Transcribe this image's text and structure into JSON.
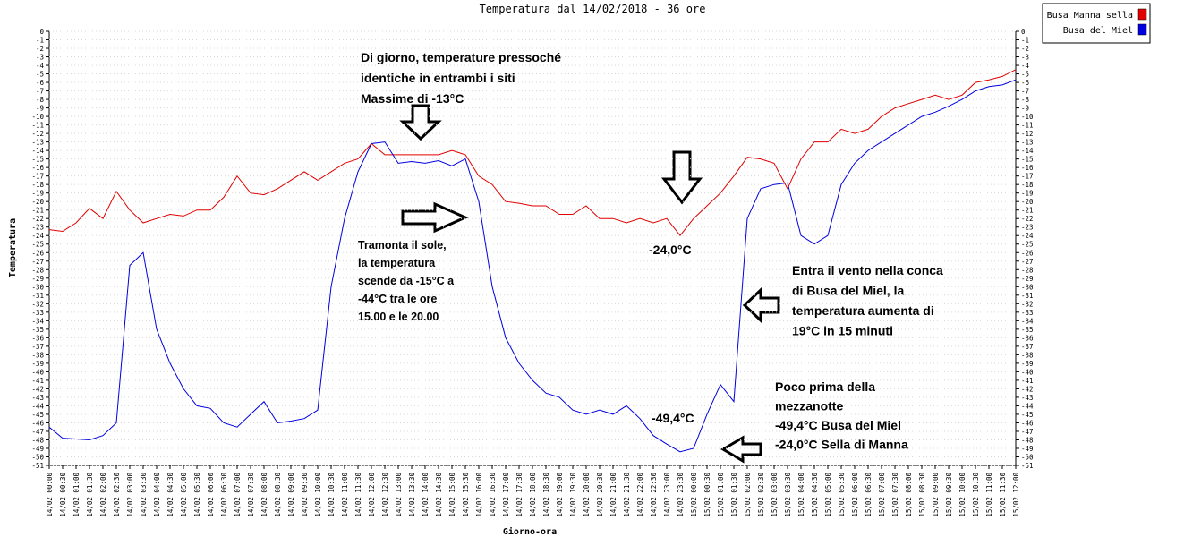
{
  "chart_data": {
    "type": "line",
    "title": "Temperatura dal 14/02/2018 - 36 ore",
    "x_label": "Giorno-ora",
    "y_label": "Temperatura",
    "legend": "top-right",
    "grid": true,
    "ylim": [
      -51,
      0
    ],
    "yticks": [
      0,
      -1,
      -2,
      -3,
      -4,
      -5,
      -6,
      -7,
      -8,
      -9,
      -10,
      -11,
      -12,
      -13,
      -14,
      -15,
      -16,
      -17,
      -18,
      -19,
      -20,
      -21,
      -22,
      -23,
      -24,
      -25,
      -26,
      -27,
      -28,
      -29,
      -30,
      -31,
      -32,
      -33,
      -34,
      -35,
      -36,
      -37,
      -38,
      -39,
      -40,
      -41,
      -42,
      -43,
      -44,
      -45,
      -46,
      -47,
      -48,
      -49,
      -50,
      -51
    ],
    "categories": [
      "14/02 00:00",
      "14/02 00:30",
      "14/02 01:00",
      "14/02 01:30",
      "14/02 02:00",
      "14/02 02:30",
      "14/02 03:00",
      "14/02 03:30",
      "14/02 04:00",
      "14/02 04:30",
      "14/02 05:00",
      "14/02 05:30",
      "14/02 06:00",
      "14/02 06:30",
      "14/02 07:00",
      "14/02 07:30",
      "14/02 08:00",
      "14/02 08:30",
      "14/02 09:00",
      "14/02 09:30",
      "14/02 10:00",
      "14/02 10:30",
      "14/02 11:00",
      "14/02 11:30",
      "14/02 12:00",
      "14/02 12:30",
      "14/02 13:00",
      "14/02 13:30",
      "14/02 14:00",
      "14/02 14:30",
      "14/02 15:00",
      "14/02 15:30",
      "14/02 16:00",
      "14/02 16:30",
      "14/02 17:00",
      "14/02 17:30",
      "14/02 18:00",
      "14/02 18:30",
      "14/02 19:00",
      "14/02 19:30",
      "14/02 20:00",
      "14/02 20:30",
      "14/02 21:00",
      "14/02 21:30",
      "14/02 22:00",
      "14/02 22:30",
      "14/02 23:00",
      "14/02 23:30",
      "15/02 00:00",
      "15/02 00:30",
      "15/02 01:00",
      "15/02 01:30",
      "15/02 02:00",
      "15/02 02:30",
      "15/02 03:00",
      "15/02 03:30",
      "15/02 04:00",
      "15/02 04:30",
      "15/02 05:00",
      "15/02 05:30",
      "15/02 06:00",
      "15/02 06:30",
      "15/02 07:00",
      "15/02 07:30",
      "15/02 08:00",
      "15/02 08:30",
      "15/02 09:00",
      "15/02 09:30",
      "15/02 10:00",
      "15/02 10:30",
      "15/02 11:00",
      "15/02 11:30",
      "15/02 12:00"
    ],
    "series": [
      {
        "name": "Busa Manna sella",
        "color": "#e00000",
        "values": [
          -23.3,
          -23.5,
          -22.5,
          -20.8,
          -22,
          -18.8,
          -21,
          -22.5,
          -22,
          -21.5,
          -21.7,
          -21,
          -21,
          -19.5,
          -17,
          -19,
          -19.2,
          -18.5,
          -17.5,
          -16.5,
          -17.5,
          -16.5,
          -15.5,
          -15,
          -13.2,
          -14.5,
          -14.5,
          -14.5,
          -14.5,
          -14.5,
          -14,
          -14.5,
          -17,
          -18,
          -20,
          -20.2,
          -20.5,
          -20.5,
          -21.5,
          -21.5,
          -20.5,
          -22,
          -22,
          -22.5,
          -22,
          -22.5,
          -22,
          -24,
          -22,
          -20.5,
          -19,
          -17,
          -14.8,
          -15,
          -15.5,
          -18.5,
          -15,
          -13,
          -13,
          -11.5,
          -12,
          -11.5,
          -10,
          -9,
          -8.5,
          -8,
          -7.5,
          -8,
          -7.5,
          -6,
          -5.7,
          -5.3,
          -4.5
        ]
      },
      {
        "name": "Busa del Miel",
        "color": "#0000e0",
        "values": [
          -46.5,
          -47.8,
          -47.9,
          -48,
          -47.5,
          -46,
          -27.5,
          -26,
          -35,
          -39,
          -42,
          -44,
          -44.3,
          -46,
          -46.5,
          -45,
          -43.5,
          -46,
          -45.8,
          -45.5,
          -44.5,
          -30,
          -22,
          -16.5,
          -13.2,
          -13,
          -15.5,
          -15.3,
          -15.5,
          -15.2,
          -15.8,
          -15,
          -20,
          -30,
          -36,
          -39,
          -41,
          -42.5,
          -43,
          -44.5,
          -45,
          -44.5,
          -45,
          -44,
          -45.5,
          -47.5,
          -48.5,
          -49.4,
          -49,
          -45,
          -41.5,
          -43.5,
          -22,
          -18.5,
          -18,
          -17.8,
          -24,
          -25,
          -24,
          -18,
          -15.5,
          -14,
          -13,
          -12,
          -11,
          -10,
          -9.5,
          -8.8,
          -8,
          -7,
          -6.5,
          -6.3,
          -5.7
        ]
      }
    ],
    "annotations": [
      [
        "Di giorno, temperature pressoché",
        "identiche in entrambi i siti",
        "Massime di -13°C"
      ],
      [
        "Tramonta il sole,",
        "la temperatura",
        "scende da -15°C a",
        "-44°C tra le ore",
        "15.00 e le 20.00"
      ],
      [
        "-24,0°C"
      ],
      [
        "Entra il vento nella conca",
        "di Busa del Miel, la",
        "temperatura aumenta di",
        "19°C in 15 minuti"
      ],
      [
        "-49,4°C"
      ],
      [
        "Poco prima della",
        "mezzanotte",
        "-49,4°C Busa del Miel",
        "-24,0°C Sella di Manna"
      ]
    ]
  }
}
